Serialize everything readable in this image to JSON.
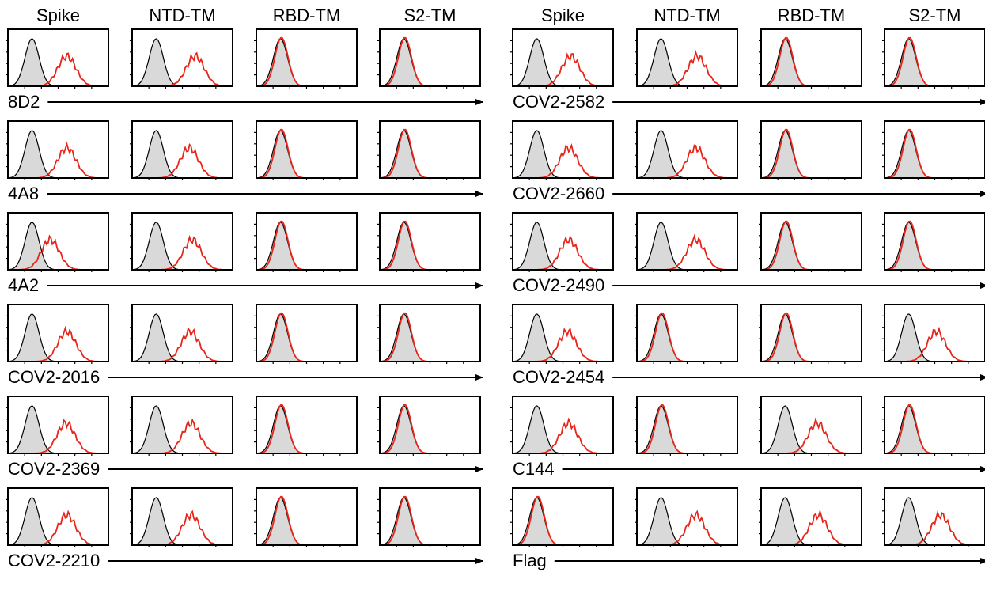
{
  "chart_data": {
    "type": "histogram-grid",
    "panels": [
      {
        "columns": [
          "Spike",
          "NTD-TM",
          "RBD-TM",
          "S2-TM"
        ],
        "rows": [
          {
            "label": "8D2",
            "binding": [
              0.82,
              0.92,
              0.0,
              0.0
            ]
          },
          {
            "label": "4A8",
            "binding": [
              0.82,
              0.78,
              0.0,
              0.0
            ]
          },
          {
            "label": "4A2",
            "binding": [
              0.42,
              0.85,
              0.0,
              0.0
            ]
          },
          {
            "label": "COV2-2016",
            "binding": [
              0.82,
              0.8,
              0.0,
              0.0
            ]
          },
          {
            "label": "COV2-2369",
            "binding": [
              0.8,
              0.82,
              0.0,
              0.0
            ]
          },
          {
            "label": "COV2-2210",
            "binding": [
              0.82,
              0.82,
              0.0,
              0.0
            ]
          }
        ]
      },
      {
        "columns": [
          "Spike",
          "NTD-TM",
          "RBD-TM",
          "S2-TM"
        ],
        "rows": [
          {
            "label": "COV2-2582",
            "binding": [
              0.8,
              0.85,
              0.0,
              0.0
            ]
          },
          {
            "label": "COV2-2660",
            "binding": [
              0.75,
              0.82,
              0.0,
              0.0
            ]
          },
          {
            "label": "COV2-2490",
            "binding": [
              0.75,
              0.82,
              0.0,
              0.0
            ]
          },
          {
            "label": "COV2-2454",
            "binding": [
              0.72,
              0.0,
              0.0,
              0.65
            ]
          },
          {
            "label": "C144",
            "binding": [
              0.75,
              0.0,
              0.75,
              0.0
            ]
          },
          {
            "label": "Flag",
            "binding": [
              0.0,
              0.82,
              0.78,
              0.75
            ]
          }
        ]
      }
    ]
  }
}
